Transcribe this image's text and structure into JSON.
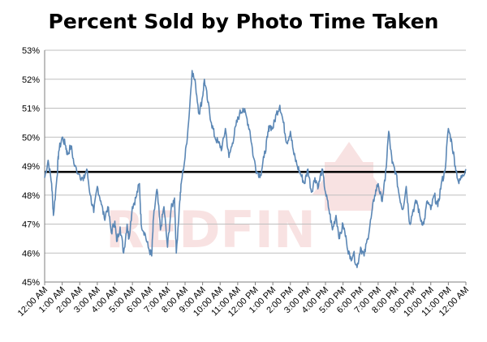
{
  "chart_data": {
    "type": "line",
    "title": "Percent Sold by Photo Time Taken",
    "xlabel": "",
    "ylabel": "",
    "x_tick_labels": [
      "12:00 AM",
      "1:00 AM",
      "2:00 AM",
      "3:00 AM",
      "4:00 AM",
      "5:00 AM",
      "6:00 AM",
      "7:00 AM",
      "8:00 AM",
      "9:00 AM",
      "10:00 AM",
      "11:00 AM",
      "12:00 PM",
      "1:00 PM",
      "2:00 PM",
      "3:00 PM",
      "4:00 PM",
      "5:00 PM",
      "6:00 PM",
      "7:00 PM",
      "8:00 PM",
      "9:00 PM",
      "10:00 PM",
      "11:00 PM",
      "12:00 AM"
    ],
    "y_tick_labels": [
      "45%",
      "46%",
      "47%",
      "48%",
      "49%",
      "50%",
      "51%",
      "52%",
      "53%"
    ],
    "xlim": [
      0,
      24
    ],
    "ylim": [
      45,
      53
    ],
    "grid": "horizontal",
    "legend": "none",
    "reference_line": {
      "y": 48.8,
      "color": "#000000"
    },
    "series_color": "#5b87b5",
    "watermark": "REDFIN",
    "series": [
      {
        "x": [
          0,
          0.2,
          0.4,
          0.5,
          0.7,
          0.8,
          1.0,
          1.2,
          1.3,
          1.5,
          1.7,
          2.0,
          2.2,
          2.4,
          2.6,
          2.8,
          3.0,
          3.2,
          3.4,
          3.6,
          3.8,
          4.0,
          4.1,
          4.3,
          4.5,
          4.7,
          4.8,
          5.0,
          5.2,
          5.4,
          5.5,
          5.7,
          5.9,
          6.1,
          6.2,
          6.4,
          6.6,
          6.8,
          7.0,
          7.2,
          7.4,
          7.5,
          7.7,
          7.8,
          8.0,
          8.2,
          8.4,
          8.6,
          8.8,
          9.0,
          9.1,
          9.3,
          9.5,
          9.7,
          9.9,
          10.1,
          10.3,
          10.5,
          10.7,
          10.9,
          11.1,
          11.3,
          11.5,
          11.7,
          11.9,
          12.1,
          12.3,
          12.5,
          12.7,
          12.8,
          13.0,
          13.2,
          13.4,
          13.6,
          13.8,
          14.0,
          14.2,
          14.4,
          14.6,
          14.8,
          15.0,
          15.2,
          15.4,
          15.6,
          15.8,
          16.0,
          16.2,
          16.4,
          16.6,
          16.8,
          17.0,
          17.2,
          17.4,
          17.6,
          17.8,
          18.0,
          18.2,
          18.4,
          18.6,
          18.8,
          19.0,
          19.2,
          19.4,
          19.6,
          19.8,
          20.0,
          20.2,
          20.4,
          20.6,
          20.8,
          21.0,
          21.2,
          21.4,
          21.6,
          21.8,
          22.0,
          22.2,
          22.4,
          22.6,
          22.8,
          23.0,
          23.2,
          23.4,
          23.6,
          23.8,
          24.0
        ],
        "values": [
          48.6,
          49.2,
          48.4,
          47.3,
          48.6,
          49.5,
          50.0,
          49.7,
          49.4,
          49.7,
          49.0,
          48.7,
          48.5,
          48.9,
          48.0,
          47.4,
          48.3,
          47.8,
          47.2,
          47.6,
          46.7,
          47.1,
          46.4,
          46.9,
          46.0,
          47.0,
          46.5,
          47.6,
          47.9,
          48.4,
          47.0,
          46.7,
          46.2,
          45.9,
          47.2,
          48.2,
          46.8,
          47.6,
          46.2,
          47.5,
          47.9,
          46.0,
          47.8,
          48.5,
          49.3,
          50.5,
          52.3,
          51.8,
          50.8,
          51.4,
          52.0,
          51.2,
          50.5,
          50.0,
          49.8,
          49.6,
          50.3,
          49.3,
          49.8,
          50.4,
          50.8,
          51.0,
          50.7,
          50.2,
          49.3,
          48.8,
          48.7,
          49.3,
          50.0,
          50.4,
          50.3,
          50.8,
          51.1,
          50.5,
          49.8,
          50.2,
          49.4,
          49.0,
          48.7,
          48.4,
          48.9,
          48.1,
          48.6,
          48.3,
          48.9,
          48.1,
          47.5,
          46.8,
          47.3,
          46.5,
          47.0,
          46.4,
          45.8,
          46.0,
          45.5,
          46.2,
          45.9,
          46.5,
          47.2,
          48.0,
          48.4,
          47.8,
          48.5,
          50.2,
          49.1,
          48.8,
          48.0,
          47.5,
          48.3,
          47.0,
          47.5,
          47.8,
          47.2,
          47.0,
          47.8,
          47.5,
          48.0,
          47.6,
          48.4,
          48.8,
          50.3,
          49.8,
          49.0,
          48.4,
          48.7,
          48.9
        ]
      }
    ]
  }
}
